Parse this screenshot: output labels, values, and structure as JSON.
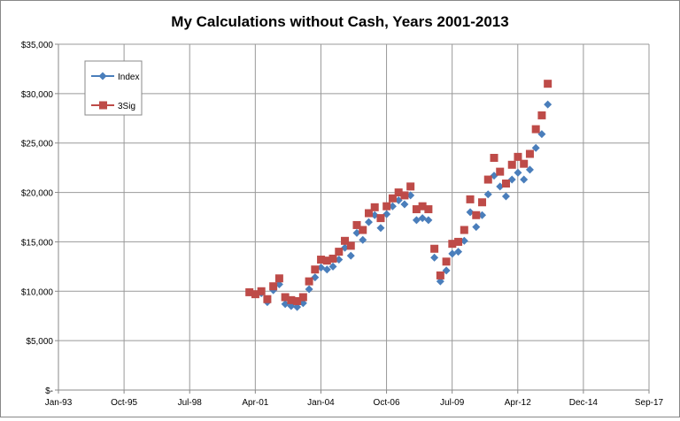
{
  "chart_data": {
    "type": "scatter",
    "title": "My Calculations without Cash, Years 2001-2013",
    "xlabel": "",
    "ylabel": "",
    "x_ticks": [
      "Jan-93",
      "Oct-95",
      "Jul-98",
      "Apr-01",
      "Jan-04",
      "Oct-06",
      "Jul-09",
      "Apr-12",
      "Dec-14",
      "Sep-17"
    ],
    "y_ticks": [
      "$-",
      "$5,000",
      "$10,000",
      "$15,000",
      "$20,000",
      "$25,000",
      "$30,000",
      "$35,000"
    ],
    "ylim": [
      0,
      35000
    ],
    "xlim": [
      "Jan-93",
      "Sep-17"
    ],
    "grid": true,
    "legend_position": "top-left",
    "x_start": "Jan-01",
    "x_interval": "quarterly",
    "series": [
      {
        "name": "Index",
        "color": "#4a7ebb",
        "marker": "diamond",
        "values": [
          9900,
          9700,
          9800,
          8900,
          10100,
          10700,
          8700,
          8500,
          8400,
          8800,
          10200,
          11400,
          12400,
          12200,
          12500,
          13200,
          14400,
          13600,
          15900,
          15200,
          17000,
          17700,
          16400,
          17800,
          18600,
          19200,
          18800,
          19700,
          17200,
          17400,
          17200,
          13400,
          11000,
          12100,
          13800,
          14000,
          15100,
          18000,
          16500,
          17700,
          19800,
          21700,
          20600,
          19600,
          21300,
          22000,
          21300,
          22300,
          24500,
          25900,
          28900
        ]
      },
      {
        "name": "3Sig",
        "color": "#be4b48",
        "marker": "square",
        "values": [
          9900,
          9700,
          10000,
          9200,
          10500,
          11300,
          9400,
          9100,
          9000,
          9400,
          11000,
          12200,
          13200,
          13100,
          13300,
          14000,
          15100,
          14600,
          16700,
          16200,
          17900,
          18500,
          17400,
          18600,
          19400,
          20000,
          19700,
          20600,
          18300,
          18600,
          18300,
          14300,
          11600,
          13000,
          14800,
          15000,
          16200,
          19300,
          17700,
          19000,
          21300,
          23500,
          22100,
          20900,
          22800,
          23600,
          22900,
          23900,
          26400,
          27800,
          31000
        ]
      }
    ]
  }
}
